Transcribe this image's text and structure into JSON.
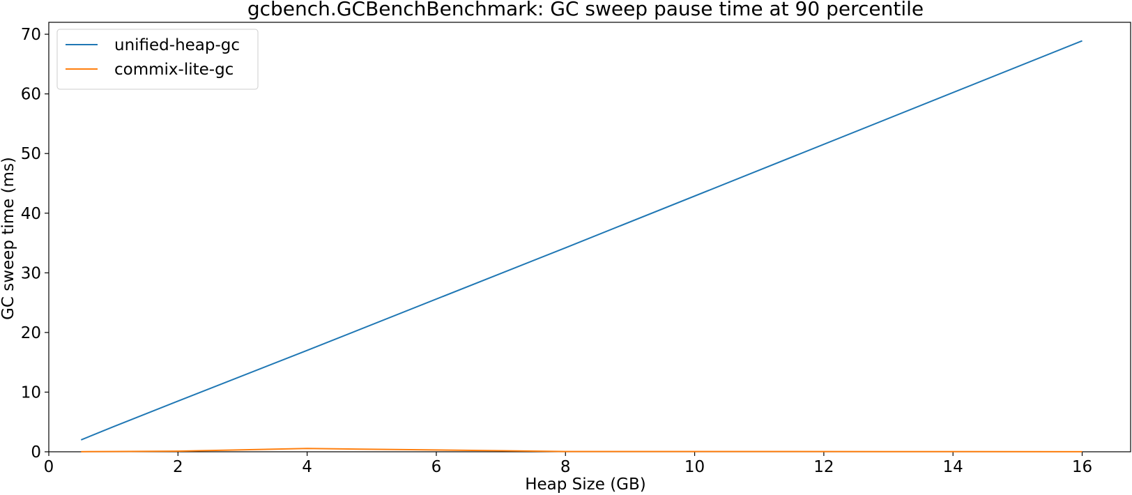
{
  "colors": {
    "background": "#ffffff",
    "axis": "#000000",
    "legend_border": "#cccccc"
  },
  "chart_data": {
    "type": "line",
    "title": "gcbench.GCBenchBenchmark: GC sweep pause time at 90 percentile",
    "xlabel": "Heap Size (GB)",
    "ylabel": "GC sweep time (ms)",
    "xlim": [
      0,
      16.75
    ],
    "ylim": [
      0,
      72
    ],
    "xticks": [
      0,
      2,
      4,
      6,
      8,
      10,
      12,
      14,
      16
    ],
    "yticks": [
      0,
      10,
      20,
      30,
      40,
      50,
      60,
      70
    ],
    "grid": false,
    "legend_position": "upper left",
    "series": [
      {
        "name": "unified-heap-gc",
        "color": "#1f77b4",
        "x": [
          0.5,
          1,
          2,
          4,
          8,
          16
        ],
        "y": [
          2.0,
          4.2,
          8.5,
          17.0,
          34.2,
          68.9
        ]
      },
      {
        "name": "commix-lite-gc",
        "color": "#ff7f0e",
        "x": [
          0.5,
          1,
          2,
          4,
          8,
          16
        ],
        "y": [
          0.02,
          0.05,
          0.1,
          0.55,
          0.05,
          0.02
        ]
      }
    ]
  }
}
